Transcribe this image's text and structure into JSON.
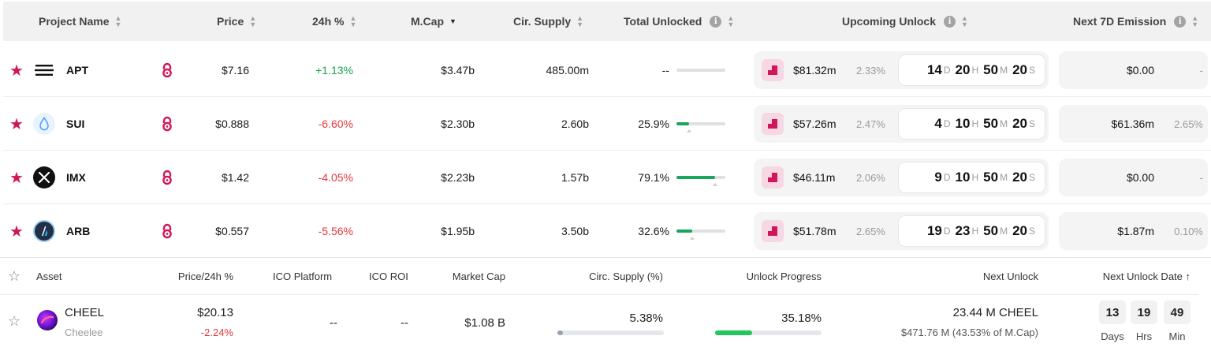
{
  "top_table": {
    "headers": {
      "project_name": "Project Name",
      "price": "Price",
      "change_24h": "24h %",
      "mcap": "M.Cap",
      "cir_supply": "Cir. Supply",
      "total_unlocked": "Total Unlocked",
      "upcoming_unlock": "Upcoming Unlock",
      "next_7d_emission": "Next 7D Emission"
    },
    "rows": [
      {
        "symbol": "APT",
        "price": "$7.16",
        "change": "+1.13%",
        "mcap": "$3.47b",
        "supply": "485.00m",
        "unlocked": "--",
        "unlocked_fraction": 0,
        "unlock_value": "$81.32m",
        "unlock_pct": "2.33%",
        "countdown": {
          "d": "14",
          "h": "20",
          "m": "50",
          "s": "20"
        },
        "emission_value": "$0.00",
        "emission_pct": "-"
      },
      {
        "symbol": "SUI",
        "price": "$0.888",
        "change": "-6.60%",
        "mcap": "$2.30b",
        "supply": "2.60b",
        "unlocked": "25.9%",
        "unlocked_fraction": 0.259,
        "unlock_value": "$57.26m",
        "unlock_pct": "2.47%",
        "countdown": {
          "d": "4",
          "h": "10",
          "m": "50",
          "s": "20"
        },
        "emission_value": "$61.36m",
        "emission_pct": "2.65%"
      },
      {
        "symbol": "IMX",
        "price": "$1.42",
        "change": "-4.05%",
        "mcap": "$2.23b",
        "supply": "1.57b",
        "unlocked": "79.1%",
        "unlocked_fraction": 0.791,
        "unlock_value": "$46.11m",
        "unlock_pct": "2.06%",
        "countdown": {
          "d": "9",
          "h": "10",
          "m": "50",
          "s": "20"
        },
        "emission_value": "$0.00",
        "emission_pct": "-"
      },
      {
        "symbol": "ARB",
        "price": "$0.557",
        "change": "-5.56%",
        "mcap": "$1.95b",
        "supply": "3.50b",
        "unlocked": "32.6%",
        "unlocked_fraction": 0.326,
        "unlock_value": "$51.78m",
        "unlock_pct": "2.65%",
        "countdown": {
          "d": "19",
          "h": "23",
          "m": "50",
          "s": "20"
        },
        "emission_value": "$1.87m",
        "emission_pct": "0.10%"
      }
    ],
    "units": {
      "d": "D",
      "h": "H",
      "m": "M",
      "s": "S"
    }
  },
  "bottom_table": {
    "headers": {
      "asset": "Asset",
      "price_24h": "Price/24h %",
      "ico_platform": "ICO Platform",
      "ico_roi": "ICO ROI",
      "market_cap": "Market Cap",
      "circ_supply": "Circ. Supply (%)",
      "unlock_progress": "Unlock Progress",
      "next_unlock": "Next Unlock",
      "next_unlock_date": "Next Unlock Date ↑"
    },
    "row": {
      "symbol": "CHEEL",
      "name": "Cheelee",
      "price": "$20.13",
      "change": "-2.24%",
      "ico_platform": "--",
      "ico_roi": "--",
      "market_cap": "$1.08 B",
      "circ_supply": "5.38%",
      "circ_supply_fraction": 0.0538,
      "unlock_progress": "35.18%",
      "unlock_progress_fraction": 0.3518,
      "next_unlock_amount": "23.44 M CHEEL",
      "next_unlock_value": "$471.76 M (43.53% of M.Cap)",
      "countdown": {
        "days": "13",
        "hrs": "19",
        "min": "49"
      },
      "countdown_labels": {
        "days": "Days",
        "hrs": "Hrs",
        "min": "Min"
      }
    }
  },
  "colors": {
    "accent": "#d1155a",
    "positive": "#16a34a",
    "negative": "#e5383b",
    "progress": "#1aa55f",
    "progress_light": "#22c55e"
  },
  "icons": {
    "favorite": "star-icon",
    "unlock": "lock-icon",
    "sort": "sort-icon",
    "info": "info-icon",
    "unlock_event": "unlock-event-icon"
  }
}
